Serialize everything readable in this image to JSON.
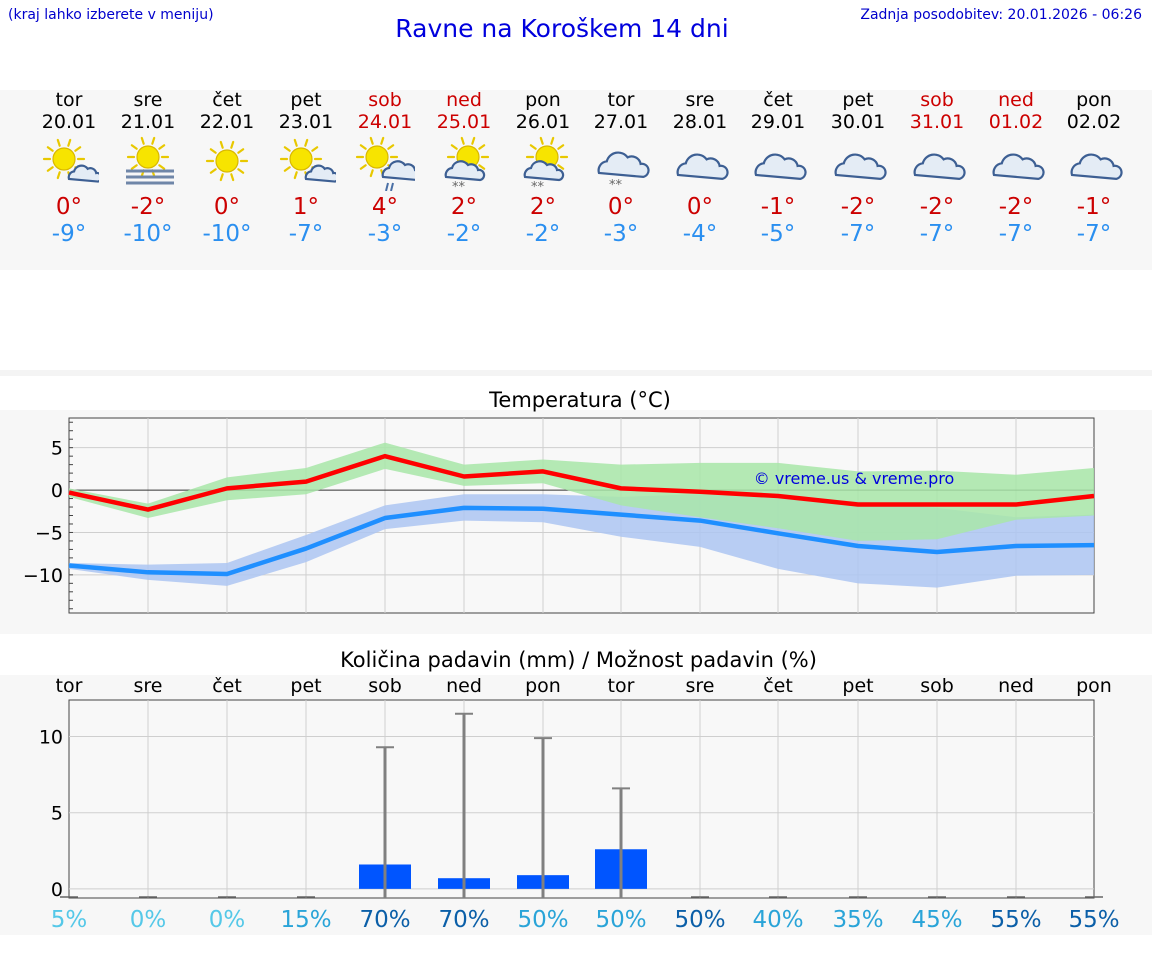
{
  "header": {
    "hint": "(kraj lahko izberete v meniju)",
    "title": "Ravne na Koroškem 14 dni",
    "updated": "Zadnja posodobitev: 20.01.2026 - 06:26"
  },
  "days": [
    {
      "name": "tor",
      "date": "20.01",
      "tmax": "0°",
      "tmin": "-9°",
      "weekend": false,
      "icon": "sun-cloud-icon"
    },
    {
      "name": "sre",
      "date": "21.01",
      "tmax": "-2°",
      "tmin": "-10°",
      "weekend": false,
      "icon": "sun-fog-icon"
    },
    {
      "name": "čet",
      "date": "22.01",
      "tmax": "0°",
      "tmin": "-10°",
      "weekend": false,
      "icon": "sun-icon"
    },
    {
      "name": "pet",
      "date": "23.01",
      "tmax": "1°",
      "tmin": "-7°",
      "weekend": false,
      "icon": "sun-cloud-icon"
    },
    {
      "name": "sob",
      "date": "24.01",
      "tmax": "4°",
      "tmin": "-3°",
      "weekend": true,
      "icon": "sun-cloud-rain-icon"
    },
    {
      "name": "ned",
      "date": "25.01",
      "tmax": "2°",
      "tmin": "-2°",
      "weekend": true,
      "icon": "sun-cloud-snow-icon"
    },
    {
      "name": "pon",
      "date": "26.01",
      "tmax": "2°",
      "tmin": "-2°",
      "weekend": false,
      "icon": "sun-cloud-snow-icon"
    },
    {
      "name": "tor",
      "date": "27.01",
      "tmax": "0°",
      "tmin": "-3°",
      "weekend": false,
      "icon": "cloud-snow-icon"
    },
    {
      "name": "sre",
      "date": "28.01",
      "tmax": "0°",
      "tmin": "-4°",
      "weekend": false,
      "icon": "cloud-icon"
    },
    {
      "name": "čet",
      "date": "29.01",
      "tmax": "-1°",
      "tmin": "-5°",
      "weekend": false,
      "icon": "cloud-icon"
    },
    {
      "name": "pet",
      "date": "30.01",
      "tmax": "-2°",
      "tmin": "-7°",
      "weekend": false,
      "icon": "cloud-icon"
    },
    {
      "name": "sob",
      "date": "31.01",
      "tmax": "-2°",
      "tmin": "-7°",
      "weekend": true,
      "icon": "cloud-icon"
    },
    {
      "name": "ned",
      "date": "01.02",
      "tmax": "-2°",
      "tmin": "-7°",
      "weekend": true,
      "icon": "cloud-icon"
    },
    {
      "name": "pon",
      "date": "02.02",
      "tmax": "-1°",
      "tmin": "-7°",
      "weekend": false,
      "icon": "cloud-icon"
    }
  ],
  "colors": {
    "max_line": "#ff0000",
    "min_line": "#1f8fff",
    "max_band": "#a8e6a8",
    "min_band": "#adc6f2",
    "overlap_band": "#76bfa6",
    "bar": "#0055ff",
    "whisker": "#808080"
  },
  "chart_data": [
    {
      "type": "line",
      "title": "Temperatura (°C)",
      "watermark": "© vreme.us & vreme.pro",
      "ylim": [
        -14.5,
        8.5
      ],
      "yticks": [
        5,
        0,
        -5,
        -10
      ],
      "ytick_labels": [
        "5",
        "0",
        "−5",
        "−10"
      ],
      "x": [
        0,
        1,
        2,
        3,
        4,
        5,
        6,
        7,
        8,
        9,
        10,
        11,
        12,
        13
      ],
      "series": [
        {
          "name": "max",
          "values": [
            -0.3,
            -2.3,
            0.2,
            1.0,
            4.0,
            1.6,
            2.2,
            0.2,
            -0.2,
            -0.7,
            -1.7,
            -1.7,
            -1.7,
            -0.7
          ],
          "band_low": [
            -0.8,
            -3.3,
            -1.2,
            -0.5,
            2.5,
            0.5,
            0.8,
            -1.8,
            -3.2,
            -4.5,
            -6.0,
            -5.8,
            -3.5,
            -3.0
          ],
          "band_high": [
            0.2,
            -1.6,
            1.5,
            2.6,
            5.6,
            3.0,
            3.6,
            3.0,
            3.2,
            3.2,
            2.2,
            2.3,
            1.8,
            2.6
          ]
        },
        {
          "name": "min",
          "values": [
            -8.9,
            -9.7,
            -9.9,
            -6.9,
            -3.3,
            -2.1,
            -2.2,
            -2.9,
            -3.6,
            -5.1,
            -6.6,
            -7.3,
            -6.6,
            -6.5
          ],
          "band_low": [
            -9.3,
            -10.6,
            -11.3,
            -8.5,
            -4.6,
            -3.6,
            -3.8,
            -5.5,
            -6.7,
            -9.3,
            -11.0,
            -11.5,
            -10.1,
            -10.0
          ],
          "band_high": [
            -8.6,
            -8.8,
            -8.6,
            -5.3,
            -1.8,
            -0.5,
            -0.5,
            -0.8,
            -0.5,
            -1.0,
            -1.3,
            -2.1,
            -3.2,
            -2.9
          ]
        }
      ]
    },
    {
      "type": "bar",
      "title": "Količina padavin (mm) / Možnost padavin (%)",
      "categories": [
        "tor",
        "sre",
        "čet",
        "pet",
        "sob",
        "ned",
        "pon",
        "tor",
        "sre",
        "čet",
        "pet",
        "sob",
        "ned",
        "pon"
      ],
      "values": [
        0,
        0,
        0,
        0,
        1.6,
        0.7,
        0.9,
        2.6,
        0,
        0,
        0,
        0,
        0,
        0
      ],
      "whisker_max": [
        0,
        0,
        0,
        0,
        9.3,
        11.5,
        9.9,
        6.6,
        0,
        0,
        0,
        0,
        0,
        0
      ],
      "ylim": [
        -0.6,
        12.4
      ],
      "yticks": [
        10,
        5,
        0
      ],
      "ytick_labels": [
        "10",
        "5",
        "0"
      ],
      "probability": [
        "5%",
        "0%",
        "0%",
        "15%",
        "70%",
        "70%",
        "50%",
        "50%",
        "50%",
        "40%",
        "35%",
        "45%",
        "55%",
        "55%"
      ],
      "probability_colors": [
        "#55c8e8",
        "#55c8e8",
        "#55c8e8",
        "#2aa4d8",
        "#0b5fa8",
        "#0b5fa8",
        "#2aa4d8",
        "#2aa4d8",
        "#0b5fa8",
        "#2aa4d8",
        "#2aa4d8",
        "#2aa4d8",
        "#0b5fa8",
        "#0b5fa8"
      ]
    }
  ]
}
